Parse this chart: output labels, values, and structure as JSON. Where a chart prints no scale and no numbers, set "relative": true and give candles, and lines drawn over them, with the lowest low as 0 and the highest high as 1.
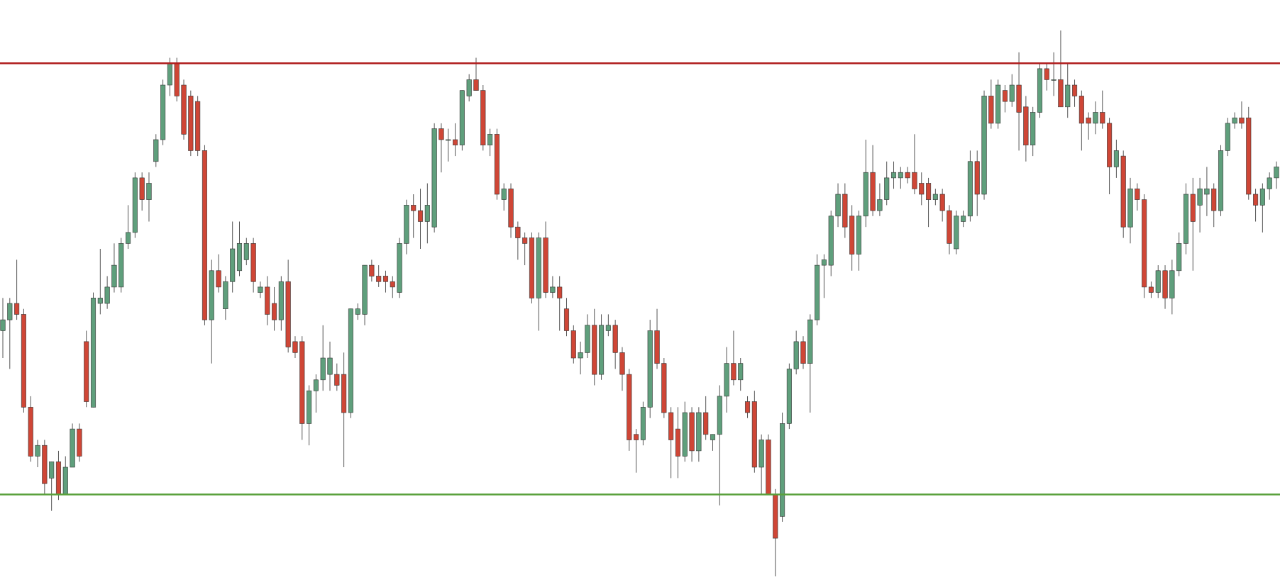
{
  "chart_data": {
    "type": "candlestick",
    "relative": true,
    "categories": [
      null,
      null,
      null,
      null,
      null,
      null,
      null,
      null,
      null,
      null,
      null,
      null,
      null,
      null,
      null,
      null,
      null,
      null,
      null,
      null,
      null,
      null,
      null,
      null,
      null,
      null,
      null,
      null,
      null,
      null,
      null,
      null,
      null,
      null,
      null,
      null,
      null,
      null,
      null,
      null,
      null,
      null,
      null,
      null,
      null,
      null,
      null,
      null,
      null,
      null,
      null,
      null,
      null,
      null,
      null,
      null,
      null,
      null,
      null,
      null,
      null,
      null,
      null,
      null,
      null,
      null,
      null,
      null,
      null,
      null,
      null,
      null,
      null,
      null,
      null,
      null,
      null,
      null,
      null,
      null,
      null,
      null,
      null,
      null,
      null,
      null,
      null,
      null,
      null,
      null,
      null,
      null,
      null,
      null,
      null,
      null,
      null,
      null,
      null,
      null,
      null,
      null,
      null,
      null,
      null,
      null,
      null,
      null,
      null,
      null,
      null,
      null,
      null,
      null,
      null,
      null,
      null,
      null,
      null,
      null,
      null,
      null,
      null,
      null,
      null,
      null,
      null,
      null,
      null,
      null,
      null,
      null,
      null,
      null,
      null,
      null,
      null,
      null,
      null,
      null,
      null,
      null,
      null,
      null,
      null,
      null,
      null,
      null,
      null,
      null,
      null,
      null,
      null,
      null,
      null,
      null,
      null,
      null,
      null,
      null,
      null,
      null,
      null,
      null,
      null,
      null,
      null,
      null,
      null,
      null,
      null,
      null,
      null,
      null,
      null,
      null,
      null,
      null,
      null,
      null,
      null,
      null,
      null,
      null
    ],
    "ohlc": [
      [
        0.45,
        0.51,
        0.4,
        0.47
      ],
      [
        0.47,
        0.51,
        0.38,
        0.5
      ],
      [
        0.5,
        0.58,
        0.47,
        0.48
      ],
      [
        0.48,
        0.49,
        0.3,
        0.31
      ],
      [
        0.31,
        0.33,
        0.21,
        0.22
      ],
      [
        0.22,
        0.25,
        0.2,
        0.24
      ],
      [
        0.24,
        0.25,
        0.15,
        0.17
      ],
      [
        0.18,
        0.21,
        0.12,
        0.21
      ],
      [
        0.21,
        0.23,
        0.14,
        0.15
      ],
      [
        0.15,
        0.22,
        0.15,
        0.2
      ],
      [
        0.2,
        0.28,
        0.2,
        0.27
      ],
      [
        0.27,
        0.28,
        0.21,
        0.22
      ],
      [
        0.43,
        0.45,
        0.31,
        0.32
      ],
      [
        0.31,
        0.52,
        0.31,
        0.51
      ],
      [
        0.5,
        0.6,
        0.48,
        0.51
      ],
      [
        0.5,
        0.55,
        0.49,
        0.53
      ],
      [
        0.53,
        0.61,
        0.52,
        0.57
      ],
      [
        0.53,
        0.62,
        0.52,
        0.61
      ],
      [
        0.61,
        0.68,
        0.6,
        0.63
      ],
      [
        0.63,
        0.74,
        0.62,
        0.73
      ],
      [
        0.73,
        0.74,
        0.67,
        0.69
      ],
      [
        0.69,
        0.74,
        0.65,
        0.72
      ],
      [
        0.76,
        0.81,
        0.75,
        0.8
      ],
      [
        0.8,
        0.91,
        0.79,
        0.9
      ],
      [
        0.9,
        0.95,
        0.88,
        0.94
      ],
      [
        0.94,
        0.95,
        0.87,
        0.88
      ],
      [
        0.9,
        0.91,
        0.8,
        0.81
      ],
      [
        0.88,
        0.89,
        0.77,
        0.78
      ],
      [
        0.87,
        0.88,
        0.77,
        0.78
      ],
      [
        0.78,
        0.79,
        0.46,
        0.47
      ],
      [
        0.47,
        0.58,
        0.39,
        0.56
      ],
      [
        0.56,
        0.59,
        0.52,
        0.53
      ],
      [
        0.49,
        0.55,
        0.47,
        0.54
      ],
      [
        0.54,
        0.65,
        0.52,
        0.6
      ],
      [
        0.56,
        0.65,
        0.55,
        0.61
      ],
      [
        0.58,
        0.62,
        0.57,
        0.61
      ],
      [
        0.61,
        0.62,
        0.52,
        0.54
      ],
      [
        0.52,
        0.54,
        0.51,
        0.53
      ],
      [
        0.53,
        0.55,
        0.46,
        0.48
      ],
      [
        0.5,
        0.53,
        0.45,
        0.47
      ],
      [
        0.47,
        0.55,
        0.45,
        0.54
      ],
      [
        0.54,
        0.58,
        0.41,
        0.42
      ],
      [
        0.43,
        0.44,
        0.4,
        0.41
      ],
      [
        0.43,
        0.44,
        0.25,
        0.28
      ],
      [
        0.28,
        0.35,
        0.24,
        0.34
      ],
      [
        0.34,
        0.37,
        0.3,
        0.36
      ],
      [
        0.36,
        0.46,
        0.34,
        0.4
      ],
      [
        0.37,
        0.43,
        0.34,
        0.4
      ],
      [
        0.37,
        0.39,
        0.34,
        0.35
      ],
      [
        0.37,
        0.41,
        0.2,
        0.3
      ],
      [
        0.3,
        0.49,
        0.29,
        0.49
      ],
      [
        0.48,
        0.5,
        0.47,
        0.49
      ],
      [
        0.48,
        0.57,
        0.46,
        0.57
      ],
      [
        0.57,
        0.58,
        0.54,
        0.55
      ],
      [
        0.55,
        0.57,
        0.53,
        0.54
      ],
      [
        0.55,
        0.56,
        0.52,
        0.54
      ],
      [
        0.54,
        0.55,
        0.51,
        0.53
      ],
      [
        0.52,
        0.62,
        0.51,
        0.61
      ],
      [
        0.61,
        0.69,
        0.59,
        0.68
      ],
      [
        0.68,
        0.7,
        0.62,
        0.67
      ],
      [
        0.67,
        0.71,
        0.6,
        0.65
      ],
      [
        0.65,
        0.72,
        0.61,
        0.68
      ],
      [
        0.64,
        0.83,
        0.63,
        0.82
      ],
      [
        0.82,
        0.83,
        0.74,
        0.8
      ],
      [
        0.8,
        0.82,
        0.76,
        0.8
      ],
      [
        0.8,
        0.83,
        0.77,
        0.79
      ],
      [
        0.79,
        0.89,
        0.78,
        0.89
      ],
      [
        0.88,
        0.92,
        0.87,
        0.91
      ],
      [
        0.91,
        0.95,
        0.89,
        0.89
      ],
      [
        0.89,
        0.9,
        0.78,
        0.79
      ],
      [
        0.79,
        0.82,
        0.77,
        0.81
      ],
      [
        0.81,
        0.82,
        0.69,
        0.7
      ],
      [
        0.69,
        0.72,
        0.67,
        0.71
      ],
      [
        0.71,
        0.72,
        0.62,
        0.64
      ],
      [
        0.64,
        0.65,
        0.58,
        0.62
      ],
      [
        0.62,
        0.63,
        0.57,
        0.61
      ],
      [
        0.62,
        0.63,
        0.5,
        0.51
      ],
      [
        0.51,
        0.63,
        0.45,
        0.62
      ],
      [
        0.62,
        0.65,
        0.51,
        0.52
      ],
      [
        0.52,
        0.55,
        0.51,
        0.53
      ],
      [
        0.53,
        0.55,
        0.45,
        0.51
      ],
      [
        0.49,
        0.51,
        0.44,
        0.45
      ],
      [
        0.45,
        0.46,
        0.39,
        0.4
      ],
      [
        0.4,
        0.43,
        0.37,
        0.41
      ],
      [
        0.41,
        0.48,
        0.4,
        0.46
      ],
      [
        0.46,
        0.49,
        0.35,
        0.37
      ],
      [
        0.37,
        0.48,
        0.36,
        0.46
      ],
      [
        0.45,
        0.48,
        0.44,
        0.46
      ],
      [
        0.46,
        0.47,
        0.38,
        0.41
      ],
      [
        0.41,
        0.42,
        0.34,
        0.37
      ],
      [
        0.37,
        0.38,
        0.23,
        0.25
      ],
      [
        0.26,
        0.27,
        0.19,
        0.25
      ],
      [
        0.25,
        0.32,
        0.24,
        0.31
      ],
      [
        0.31,
        0.47,
        0.29,
        0.45
      ],
      [
        0.45,
        0.49,
        0.38,
        0.39
      ],
      [
        0.39,
        0.4,
        0.29,
        0.3
      ],
      [
        0.3,
        0.31,
        0.18,
        0.25
      ],
      [
        0.27,
        0.31,
        0.18,
        0.22
      ],
      [
        0.22,
        0.32,
        0.21,
        0.3
      ],
      [
        0.3,
        0.31,
        0.21,
        0.23
      ],
      [
        0.23,
        0.31,
        0.21,
        0.3
      ],
      [
        0.3,
        0.33,
        0.25,
        0.26
      ],
      [
        0.25,
        0.26,
        0.23,
        0.26
      ],
      [
        0.26,
        0.35,
        0.13,
        0.33
      ],
      [
        0.33,
        0.42,
        0.3,
        0.39
      ],
      [
        0.39,
        0.45,
        0.35,
        0.36
      ],
      [
        0.36,
        0.4,
        0.34,
        0.39
      ],
      [
        0.32,
        0.33,
        0.29,
        0.3
      ],
      [
        0.32,
        0.34,
        0.19,
        0.2
      ],
      [
        0.2,
        0.26,
        0.15,
        0.25
      ],
      [
        0.25,
        0.26,
        0.15,
        0.15
      ],
      [
        0.15,
        0.16,
        0.0,
        0.07
      ],
      [
        0.11,
        0.3,
        0.1,
        0.28
      ],
      [
        0.28,
        0.39,
        0.27,
        0.38
      ],
      [
        0.38,
        0.45,
        0.37,
        0.43
      ],
      [
        0.43,
        0.44,
        0.38,
        0.39
      ],
      [
        0.39,
        0.48,
        0.3,
        0.47
      ],
      [
        0.47,
        0.59,
        0.46,
        0.57
      ],
      [
        0.57,
        0.59,
        0.51,
        0.58
      ],
      [
        0.57,
        0.67,
        0.55,
        0.66
      ],
      [
        0.66,
        0.72,
        0.64,
        0.7
      ],
      [
        0.7,
        0.72,
        0.62,
        0.64
      ],
      [
        0.66,
        0.68,
        0.56,
        0.59
      ],
      [
        0.59,
        0.67,
        0.56,
        0.66
      ],
      [
        0.66,
        0.8,
        0.64,
        0.74
      ],
      [
        0.74,
        0.79,
        0.66,
        0.67
      ],
      [
        0.67,
        0.72,
        0.66,
        0.69
      ],
      [
        0.69,
        0.76,
        0.68,
        0.73
      ],
      [
        0.73,
        0.76,
        0.71,
        0.74
      ],
      [
        0.73,
        0.75,
        0.71,
        0.74
      ],
      [
        0.74,
        0.75,
        0.72,
        0.73
      ],
      [
        0.74,
        0.81,
        0.7,
        0.71
      ],
      [
        0.72,
        0.74,
        0.68,
        0.7
      ],
      [
        0.72,
        0.73,
        0.64,
        0.69
      ],
      [
        0.69,
        0.71,
        0.68,
        0.7
      ],
      [
        0.7,
        0.71,
        0.65,
        0.67
      ],
      [
        0.67,
        0.68,
        0.59,
        0.61
      ],
      [
        0.6,
        0.67,
        0.59,
        0.66
      ],
      [
        0.65,
        0.67,
        0.64,
        0.66
      ],
      [
        0.66,
        0.78,
        0.65,
        0.76
      ],
      [
        0.76,
        0.78,
        0.66,
        0.7
      ],
      [
        0.7,
        0.89,
        0.69,
        0.88
      ],
      [
        0.88,
        0.91,
        0.82,
        0.83
      ],
      [
        0.83,
        0.91,
        0.82,
        0.9
      ],
      [
        0.89,
        0.9,
        0.85,
        0.87
      ],
      [
        0.87,
        0.92,
        0.86,
        0.9
      ],
      [
        0.9,
        0.96,
        0.78,
        0.85
      ],
      [
        0.86,
        0.88,
        0.76,
        0.79
      ],
      [
        0.79,
        0.86,
        0.77,
        0.85
      ],
      [
        0.85,
        0.94,
        0.84,
        0.93
      ],
      [
        0.93,
        0.94,
        0.89,
        0.91
      ],
      [
        0.91,
        0.96,
        0.88,
        0.91
      ],
      [
        0.91,
        1.0,
        0.86,
        0.86
      ],
      [
        0.86,
        0.94,
        0.84,
        0.9
      ],
      [
        0.9,
        0.91,
        0.86,
        0.88
      ],
      [
        0.88,
        0.89,
        0.78,
        0.83
      ],
      [
        0.84,
        0.85,
        0.8,
        0.83
      ],
      [
        0.83,
        0.87,
        0.81,
        0.85
      ],
      [
        0.85,
        0.89,
        0.82,
        0.83
      ],
      [
        0.83,
        0.84,
        0.7,
        0.75
      ],
      [
        0.75,
        0.8,
        0.73,
        0.78
      ],
      [
        0.77,
        0.78,
        0.62,
        0.64
      ],
      [
        0.64,
        0.73,
        0.61,
        0.71
      ],
      [
        0.71,
        0.72,
        0.67,
        0.69
      ],
      [
        0.69,
        0.7,
        0.51,
        0.53
      ],
      [
        0.53,
        0.54,
        0.51,
        0.52
      ],
      [
        0.52,
        0.57,
        0.51,
        0.56
      ],
      [
        0.56,
        0.57,
        0.49,
        0.51
      ],
      [
        0.51,
        0.58,
        0.48,
        0.56
      ],
      [
        0.56,
        0.63,
        0.55,
        0.61
      ],
      [
        0.61,
        0.72,
        0.59,
        0.7
      ],
      [
        0.7,
        0.73,
        0.56,
        0.65
      ],
      [
        0.68,
        0.73,
        0.63,
        0.71
      ],
      [
        0.7,
        0.75,
        0.66,
        0.71
      ],
      [
        0.71,
        0.72,
        0.64,
        0.67
      ],
      [
        0.67,
        0.79,
        0.66,
        0.78
      ],
      [
        0.78,
        0.84,
        0.77,
        0.83
      ],
      [
        0.83,
        0.85,
        0.82,
        0.84
      ],
      [
        0.84,
        0.87,
        0.82,
        0.83
      ],
      [
        0.84,
        0.86,
        0.69,
        0.7
      ],
      [
        0.7,
        0.71,
        0.65,
        0.68
      ],
      [
        0.68,
        0.72,
        0.63,
        0.71
      ],
      [
        0.71,
        0.74,
        0.69,
        0.73
      ],
      [
        0.73,
        0.76,
        0.71,
        0.75
      ]
    ],
    "ref_lines": [
      {
        "axis": "y",
        "value": 0.94,
        "color": "#b01e1e",
        "line_style": "solid"
      },
      {
        "axis": "y",
        "value": 0.15,
        "color": "#5aa03c",
        "line_style": "solid"
      }
    ]
  }
}
